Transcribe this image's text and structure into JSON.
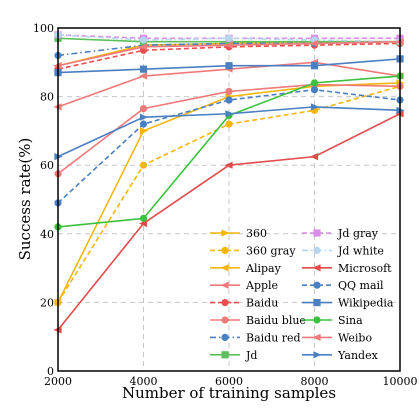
{
  "chart_data": {
    "type": "line",
    "title": "",
    "xlabel": "Number of training samples",
    "ylabel": "Success rate(%)",
    "x": [
      2000,
      4000,
      6000,
      8000,
      10000
    ],
    "xlim": [
      2000,
      10000
    ],
    "ylim": [
      0,
      100
    ],
    "yticks": [
      0,
      20,
      40,
      60,
      80,
      100
    ],
    "grid": true,
    "legend_position": "lower-right, two columns",
    "series": [
      {
        "name": "360",
        "color": "#f5b50a",
        "dash": false,
        "marker": "triangle-right",
        "values": [
          20,
          70,
          80,
          83,
          84
        ]
      },
      {
        "name": "360 gray",
        "color": "#f5b50a",
        "dash": true,
        "marker": "circle",
        "values": [
          20,
          60,
          72,
          76,
          83
        ]
      },
      {
        "name": "Alipay",
        "color": "#f5b50a",
        "dash": false,
        "marker": "triangle-left",
        "values": [
          89,
          95,
          95.5,
          96,
          96
        ]
      },
      {
        "name": "Apple",
        "color": "#f07a7a",
        "dash": false,
        "marker": "triangle-left",
        "values": [
          77,
          86,
          88,
          90,
          86
        ]
      },
      {
        "name": "Baidu",
        "color": "#e94f4f",
        "dash": true,
        "marker": "circle",
        "values": [
          88,
          93.5,
          94.5,
          95,
          95.5
        ]
      },
      {
        "name": "Baidu blue",
        "color": "#f07a7a",
        "dash": false,
        "marker": "circle",
        "values": [
          57.5,
          76.5,
          81.5,
          83.5,
          83
        ]
      },
      {
        "name": "Baidu red",
        "color": "#4a7fc1",
        "dash": "dashdot",
        "marker": "circle",
        "values": [
          92,
          95,
          95.5,
          95.5,
          96
        ]
      },
      {
        "name": "Jd",
        "color": "#5cc15c",
        "dash": false,
        "marker": "square",
        "values": [
          97,
          96,
          96,
          96,
          96
        ]
      },
      {
        "name": "Jd gray",
        "color": "#d98ce8",
        "dash": true,
        "marker": "square",
        "values": [
          98,
          97,
          97,
          97,
          97
        ]
      },
      {
        "name": "Jd white",
        "color": "#b5d6ee",
        "dash": "dashdot",
        "marker": "circle",
        "values": [
          98,
          96.5,
          97,
          96.5,
          96
        ]
      },
      {
        "name": "Microsoft",
        "color": "#e24b4b",
        "dash": false,
        "marker": "triangle-left",
        "values": [
          12,
          43,
          60,
          62.5,
          75
        ]
      },
      {
        "name": "QQ mail",
        "color": "#4a7fc1",
        "dash": true,
        "marker": "circle",
        "values": [
          49,
          72,
          79,
          82,
          79
        ]
      },
      {
        "name": "Wikipedia",
        "color": "#4a7fc1",
        "dash": false,
        "marker": "square",
        "values": [
          87,
          88,
          89,
          89,
          91
        ]
      },
      {
        "name": "Sina",
        "color": "#3cc13c",
        "dash": false,
        "marker": "circle",
        "values": [
          42,
          44.5,
          74.5,
          84,
          86
        ]
      },
      {
        "name": "Weibo",
        "color": "#f07a7a",
        "dash": false,
        "marker": "triangle-left",
        "values": [
          89,
          94.5,
          95,
          95.5,
          96
        ]
      },
      {
        "name": "Yandex",
        "color": "#4a7fc1",
        "dash": false,
        "marker": "triangle-right",
        "values": [
          62.5,
          74,
          75,
          77,
          76
        ]
      }
    ]
  }
}
